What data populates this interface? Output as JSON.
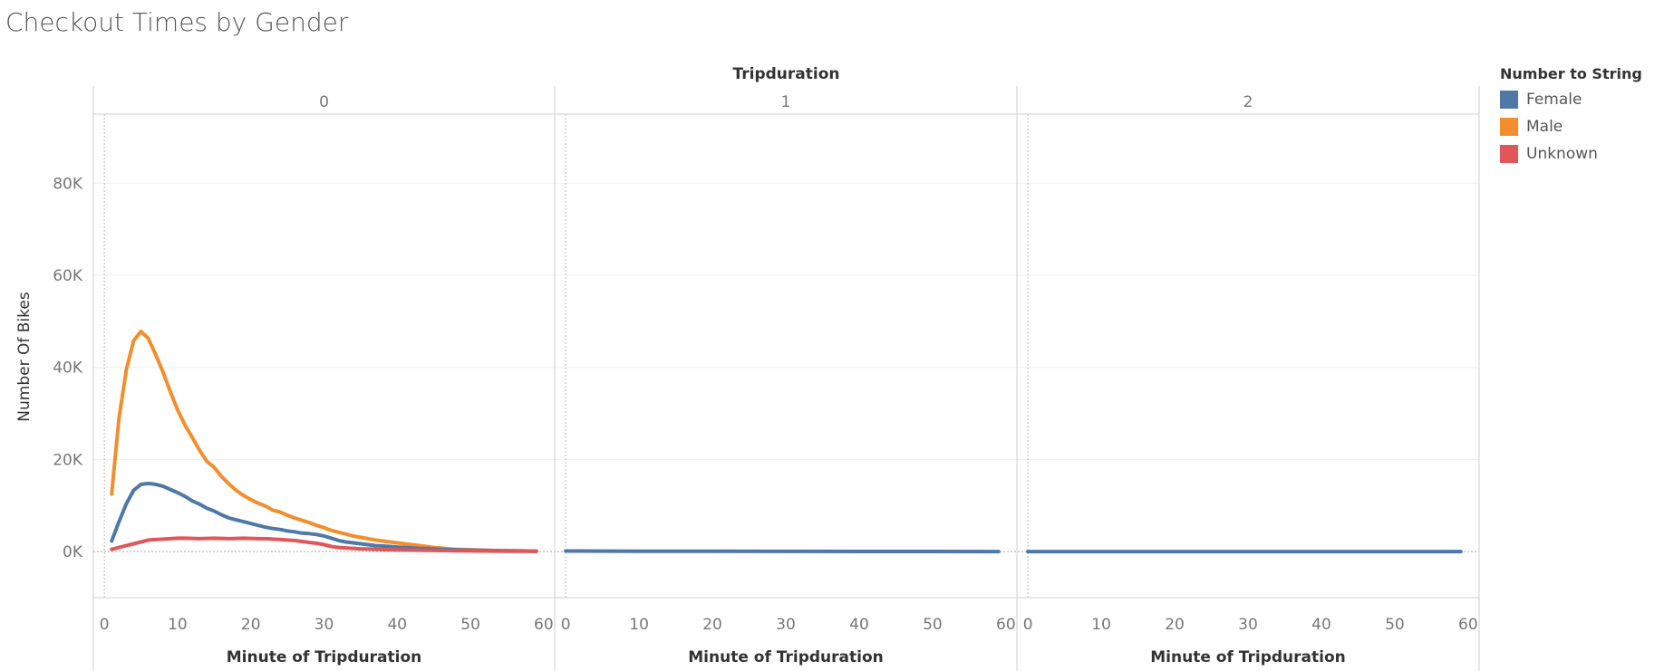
{
  "title": "Checkout Times by Gender",
  "legend": {
    "title": "Number to String",
    "items": [
      {
        "label": "Female",
        "color": "#4e79a7"
      },
      {
        "label": "Male",
        "color": "#f28e2b"
      },
      {
        "label": "Unknown",
        "color": "#e15759"
      }
    ]
  },
  "chart_data": {
    "type": "line",
    "title": "Checkout Times by Gender",
    "column_header": "Tripduration",
    "panels": [
      "0",
      "1",
      "2"
    ],
    "xlabel": "Minute of Tripduration",
    "ylabel": "Number Of Bikes",
    "xlim": [
      -1.5,
      61.5
    ],
    "ylim": [
      -10000,
      95000
    ],
    "xticks": [
      0,
      10,
      20,
      30,
      40,
      50,
      60
    ],
    "xtick_labels": [
      "0",
      "10",
      "20",
      "30",
      "40",
      "50",
      "60"
    ],
    "yticks": [
      0,
      20000,
      40000,
      60000,
      80000
    ],
    "ytick_labels": [
      "0K",
      "20K",
      "40K",
      "60K",
      "80K"
    ],
    "gridlines": true,
    "legend_position": "right",
    "series": [
      {
        "name": "Male",
        "color": "#f28e2b",
        "panel": 0,
        "x": [
          1,
          2,
          3,
          4,
          5,
          6,
          7,
          8,
          9,
          10,
          11,
          12,
          13,
          14,
          15,
          16,
          17,
          18,
          19,
          20,
          21,
          22,
          23,
          24,
          25,
          26,
          27,
          28,
          29,
          30,
          31,
          32,
          33,
          34,
          35,
          36,
          37,
          38,
          39,
          40,
          41,
          42,
          43,
          44,
          45,
          46,
          47,
          48,
          49,
          50,
          51,
          52,
          53,
          54,
          55,
          56,
          57,
          58,
          59
        ],
        "values": [
          12500,
          29000,
          39500,
          45800,
          47800,
          46300,
          42800,
          39000,
          34800,
          30800,
          27500,
          24800,
          22000,
          19600,
          18300,
          16300,
          14700,
          13300,
          12200,
          11300,
          10500,
          9900,
          9000,
          8600,
          7900,
          7300,
          6800,
          6300,
          5700,
          5200,
          4600,
          4200,
          3800,
          3400,
          3100,
          2800,
          2500,
          2300,
          2100,
          1900,
          1700,
          1500,
          1300,
          1100,
          900,
          750,
          600,
          500,
          450,
          400,
          350,
          300,
          250,
          200,
          180,
          150,
          120,
          100,
          80
        ]
      },
      {
        "name": "Female",
        "color": "#4e79a7",
        "panel": 0,
        "x": [
          1,
          2,
          3,
          4,
          5,
          6,
          7,
          8,
          9,
          10,
          11,
          12,
          13,
          14,
          15,
          16,
          17,
          18,
          19,
          20,
          21,
          22,
          23,
          24,
          25,
          26,
          27,
          28,
          29,
          30,
          31,
          32,
          33,
          34,
          35,
          36,
          37,
          38,
          39,
          40,
          41,
          42,
          43,
          44,
          45,
          46,
          47,
          48,
          49,
          50,
          51,
          52,
          53,
          54,
          55,
          56,
          57,
          58,
          59
        ],
        "values": [
          2300,
          6500,
          10400,
          13300,
          14600,
          14800,
          14600,
          14200,
          13500,
          12800,
          12000,
          11000,
          10300,
          9400,
          8800,
          8000,
          7300,
          6900,
          6500,
          6100,
          5700,
          5300,
          5000,
          4800,
          4500,
          4300,
          4000,
          3900,
          3700,
          3400,
          2900,
          2400,
          2100,
          1900,
          1700,
          1500,
          1300,
          1200,
          1100,
          1000,
          900,
          800,
          700,
          650,
          600,
          500,
          450,
          400,
          350,
          300,
          280,
          250,
          220,
          200,
          180,
          160,
          140,
          120,
          100
        ]
      },
      {
        "name": "Unknown",
        "color": "#e15759",
        "panel": 0,
        "x": [
          1,
          2,
          3,
          4,
          5,
          6,
          7,
          8,
          9,
          10,
          11,
          12,
          13,
          14,
          15,
          16,
          17,
          18,
          19,
          20,
          21,
          22,
          23,
          24,
          25,
          26,
          27,
          28,
          29,
          30,
          31,
          32,
          33,
          34,
          35,
          36,
          37,
          38,
          39,
          40,
          41,
          42,
          43,
          44,
          45,
          46,
          47,
          48,
          49,
          50,
          51,
          52,
          53,
          54,
          55,
          56,
          57,
          58,
          59
        ],
        "values": [
          500,
          900,
          1300,
          1700,
          2100,
          2500,
          2600,
          2700,
          2800,
          2900,
          2900,
          2850,
          2800,
          2850,
          2900,
          2850,
          2800,
          2850,
          2900,
          2850,
          2800,
          2800,
          2700,
          2650,
          2500,
          2400,
          2200,
          2000,
          1800,
          1500,
          1100,
          900,
          800,
          700,
          600,
          550,
          500,
          450,
          400,
          380,
          350,
          320,
          300,
          280,
          250,
          220,
          200,
          180,
          160,
          150,
          130,
          120,
          110,
          100,
          90,
          80,
          70,
          60,
          50
        ]
      },
      {
        "name": "Female",
        "color": "#4e79a7",
        "panel": 1,
        "x": [
          0,
          10,
          20,
          30,
          40,
          50,
          59
        ],
        "values": [
          120,
          80,
          60,
          40,
          30,
          20,
          10
        ]
      },
      {
        "name": "Female",
        "color": "#4e79a7",
        "panel": 2,
        "x": [
          0,
          10,
          20,
          30,
          40,
          50,
          59
        ],
        "values": [
          10,
          10,
          10,
          10,
          10,
          10,
          10
        ]
      }
    ]
  }
}
